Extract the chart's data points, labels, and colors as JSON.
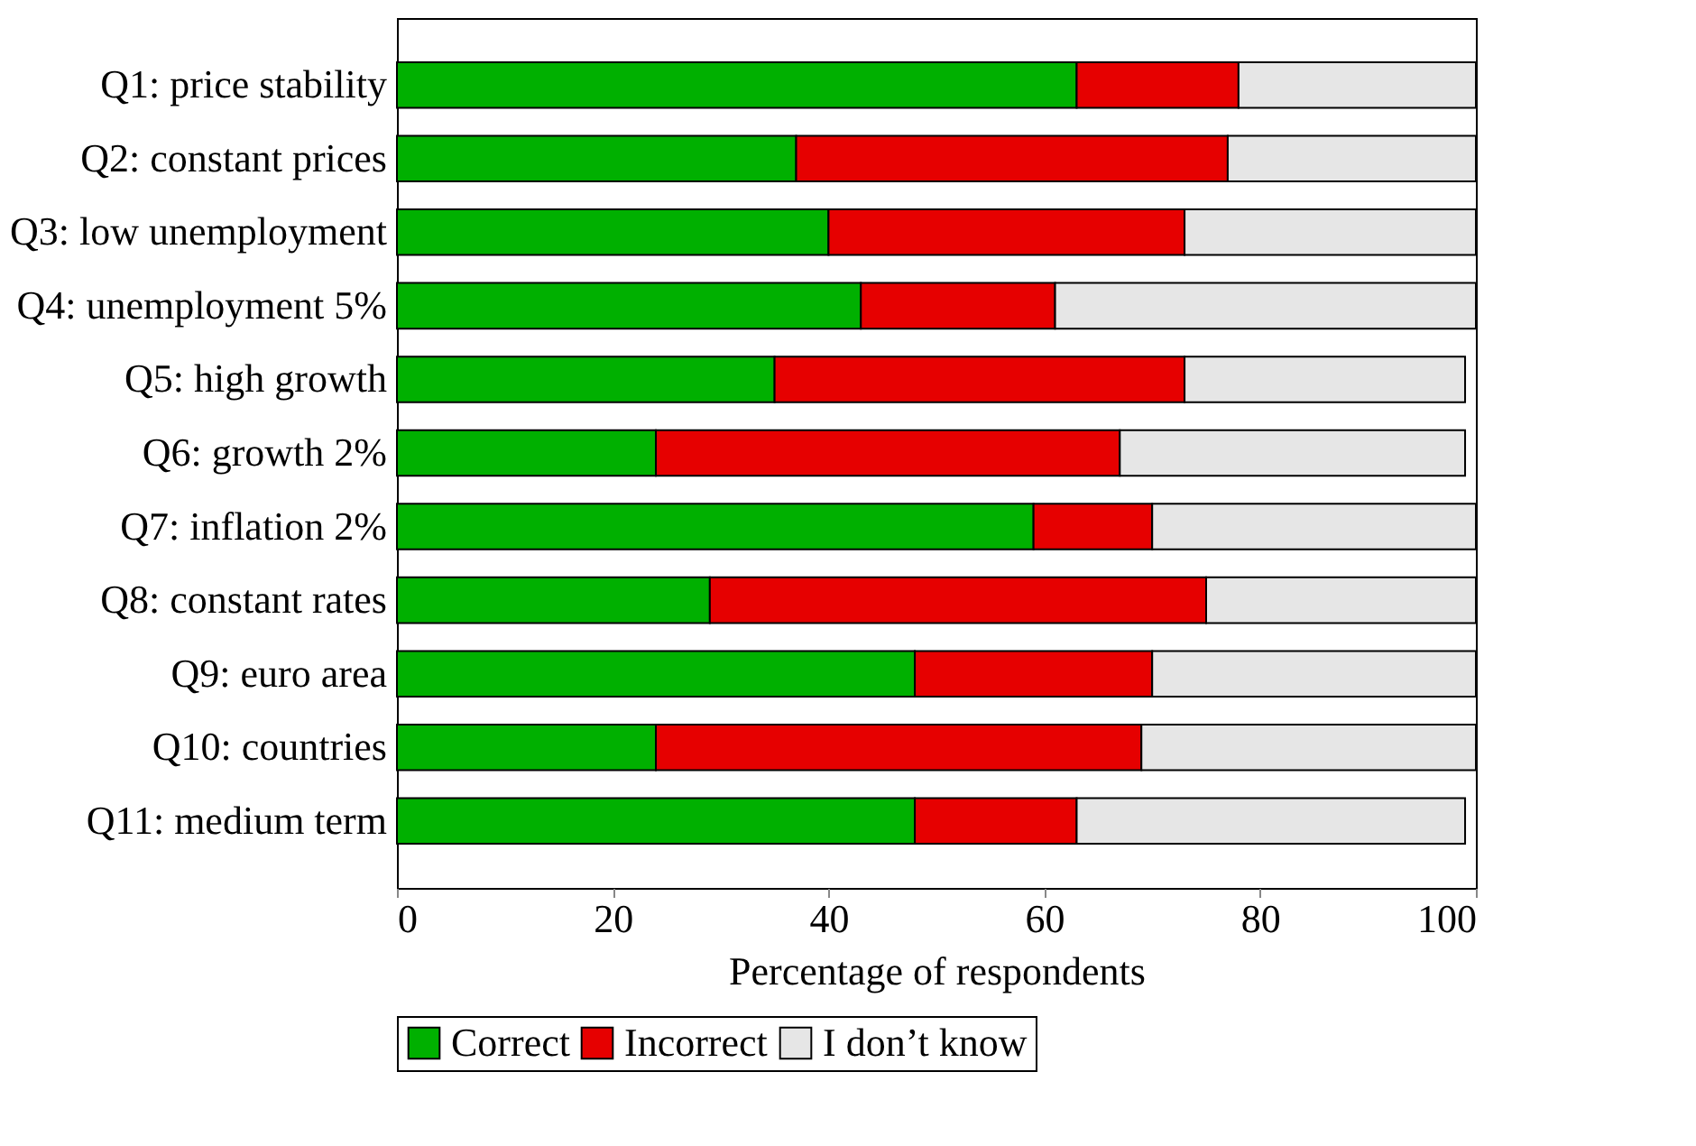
{
  "chart_data": {
    "type": "bar",
    "orientation": "horizontal",
    "stacked": true,
    "categories": [
      "Q1: price stability",
      "Q2: constant prices",
      "Q3: low unemployment",
      "Q4: unemployment 5%",
      "Q5: high growth",
      "Q6: growth 2%",
      "Q7: inflation 2%",
      "Q8: constant rates",
      "Q9: euro area",
      "Q10: countries",
      "Q11: medium term"
    ],
    "series": [
      {
        "name": "Correct",
        "color": "#00b000",
        "values": [
          63,
          37,
          40,
          43,
          35,
          24,
          59,
          29,
          48,
          24,
          48
        ]
      },
      {
        "name": "Incorrect",
        "color": "#e60000",
        "values": [
          15,
          40,
          33,
          18,
          38,
          43,
          11,
          46,
          22,
          45,
          15
        ]
      },
      {
        "name": "I don’t know",
        "color": "#e6e6e6",
        "values": [
          22,
          23,
          27,
          39,
          26,
          32,
          30,
          25,
          30,
          31,
          36
        ]
      }
    ],
    "xlabel": "Percentage of respondents",
    "xlim": [
      0,
      100
    ],
    "xticks": [
      0,
      20,
      40,
      60,
      80,
      100
    ],
    "grid": false,
    "legend": "bottom"
  }
}
